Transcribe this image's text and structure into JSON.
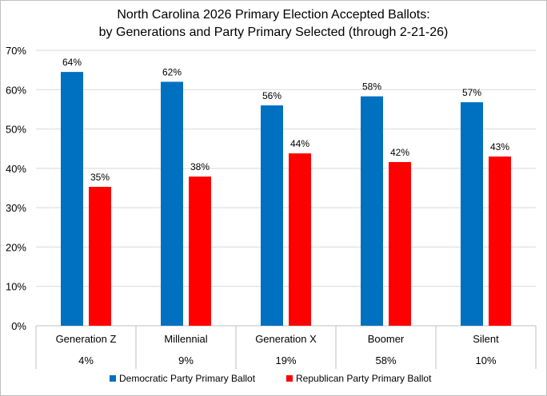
{
  "chart_data": {
    "type": "bar",
    "title": "North Carolina 2026 Primary Election Accepted Ballots:",
    "subtitle": "by Generations and Party Primary Selected (through 2-21-26)",
    "categories": [
      "Generation Z",
      "Millennial",
      "Generation X",
      "Boomer",
      "Silent"
    ],
    "category_shares": [
      "4%",
      "9%",
      "19%",
      "58%",
      "10%"
    ],
    "series": [
      {
        "name": "Democratic Party Primary Ballot",
        "color": "#0070c0",
        "values": [
          64.5,
          62.0,
          56.0,
          58.3,
          56.8
        ],
        "labels": [
          "64%",
          "62%",
          "56%",
          "58%",
          "57%"
        ]
      },
      {
        "name": "Republican Party Primary Ballot",
        "color": "#ff0000",
        "values": [
          35.3,
          37.9,
          43.8,
          41.6,
          43.0
        ],
        "labels": [
          "35%",
          "38%",
          "44%",
          "42%",
          "43%"
        ]
      }
    ],
    "ylim": [
      0,
      70
    ],
    "yticks": [
      "0%",
      "10%",
      "20%",
      "30%",
      "40%",
      "50%",
      "60%",
      "70%"
    ],
    "xlabel": "",
    "ylabel": "",
    "grid": true,
    "legend": "bottom"
  }
}
